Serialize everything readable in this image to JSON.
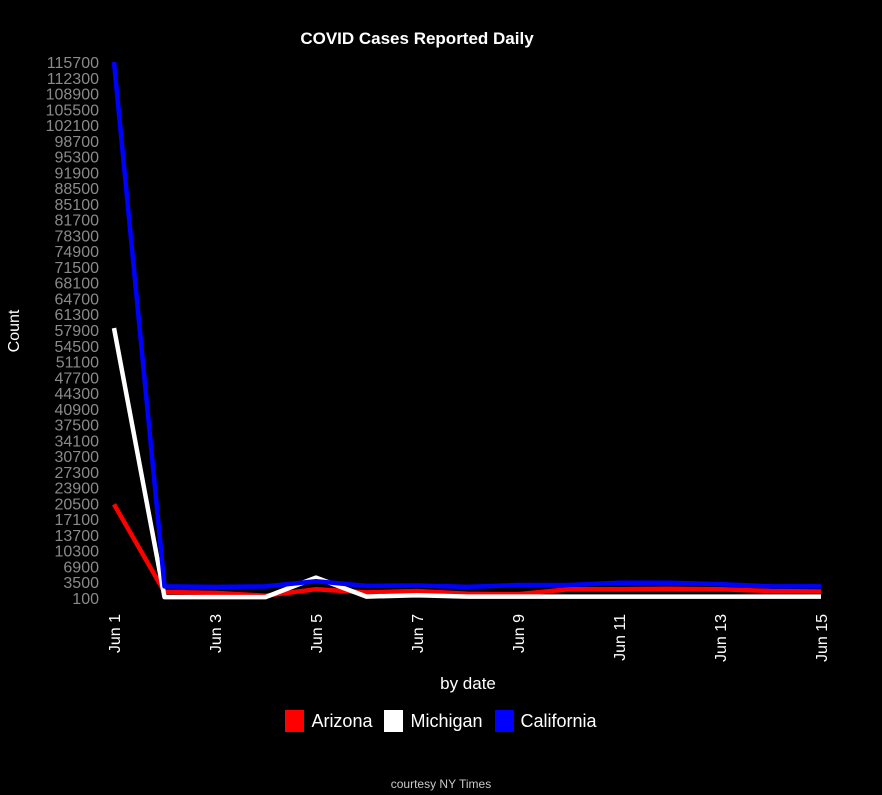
{
  "chart_data": {
    "type": "line",
    "title": "COVID Cases Reported Daily",
    "xlabel": "by date",
    "ylabel": "Count",
    "x": [
      "Jun 1",
      "Jun 2",
      "Jun 3",
      "Jun 4",
      "Jun 5",
      "Jun 6",
      "Jun 7",
      "Jun 8",
      "Jun 9",
      "Jun 10",
      "Jun 11",
      "Jun 12",
      "Jun 13",
      "Jun 14",
      "Jun 15"
    ],
    "x_tick_labels": [
      "Jun 1",
      "Jun 3",
      "Jun 5",
      "Jun 7",
      "Jun 9",
      "Jun 11",
      "Jun 13",
      "Jun 15"
    ],
    "y_ticks": [
      100,
      3500,
      6900,
      10300,
      13700,
      17100,
      20500,
      23900,
      27300,
      30700,
      34100,
      37500,
      40900,
      44300,
      47700,
      51100,
      54500,
      57900,
      61300,
      64700,
      68100,
      71500,
      74900,
      78300,
      81700,
      85100,
      88500,
      91900,
      95300,
      98700,
      102100,
      105500,
      108900,
      112300,
      115700
    ],
    "ylim": [
      100,
      115700
    ],
    "grid": false,
    "legend_position": "bottom",
    "series": [
      {
        "name": "Arizona",
        "color": "#ff0000",
        "values": [
          20300,
          1400,
          1200,
          600,
          2000,
          1300,
          1600,
          1000,
          900,
          2000,
          2000,
          2100,
          2000,
          1600,
          1500
        ]
      },
      {
        "name": "Michigan",
        "color": "#ffffff",
        "values": [
          58300,
          300,
          300,
          300,
          4500,
          400,
          700,
          400,
          400,
          400,
          400,
          400,
          400,
          400,
          400
        ]
      },
      {
        "name": "California",
        "color": "#0000ff",
        "values": [
          115700,
          2600,
          2500,
          2600,
          3700,
          2700,
          2800,
          2500,
          2900,
          2900,
          3400,
          3400,
          3100,
          2600,
          2600
        ]
      }
    ]
  },
  "credit": "courtesy NY Times"
}
